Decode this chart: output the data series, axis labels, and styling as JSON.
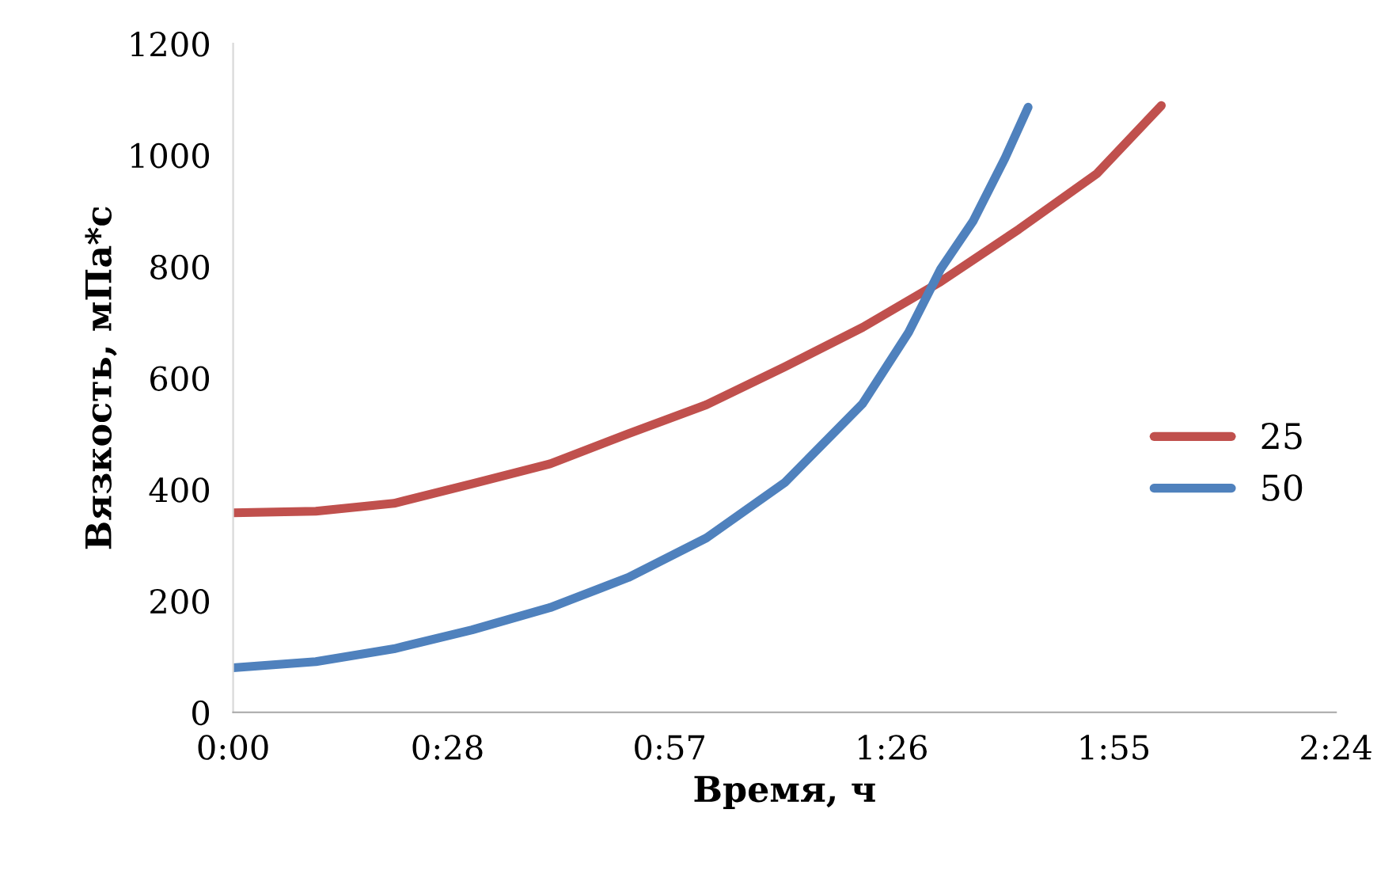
{
  "chart_data": {
    "type": "line",
    "xlabel": "Время, ч",
    "ylabel": "Вязкость, мПа*с",
    "xlim": [
      0,
      2.4
    ],
    "xticks": [
      {
        "value": 0,
        "label": "0:00"
      },
      {
        "value": 0.466667,
        "label": "0:28"
      },
      {
        "value": 0.95,
        "label": "0:57"
      },
      {
        "value": 1.433333,
        "label": "1:26"
      },
      {
        "value": 1.916667,
        "label": "1:55"
      },
      {
        "value": 2.4,
        "label": "2:24"
      }
    ],
    "ylim": [
      0,
      1200
    ],
    "yticks": [
      0,
      200,
      400,
      600,
      800,
      1000,
      1200
    ],
    "grid": false,
    "legend": "right",
    "marker": "none",
    "line_style": "solid",
    "series": [
      {
        "name": "25",
        "color": "#c0504d",
        "x": [
          0,
          0.18,
          0.35,
          0.52,
          0.69,
          0.86,
          1.03,
          1.2,
          1.37,
          1.54,
          1.71,
          1.88,
          2.02
        ],
        "values": [
          358,
          361,
          375,
          410,
          446,
          500,
          552,
          620,
          691,
          773,
          867,
          967,
          1089
        ]
      },
      {
        "name": "50",
        "color": "#4f81bd",
        "x": [
          0,
          0.18,
          0.35,
          0.52,
          0.69,
          0.86,
          1.03,
          1.2,
          1.37,
          1.47,
          1.54,
          1.61,
          1.68,
          1.73
        ],
        "values": [
          80,
          91,
          114,
          148,
          188,
          242,
          313,
          412,
          554,
          682,
          796,
          881,
          995,
          1086
        ]
      }
    ]
  }
}
